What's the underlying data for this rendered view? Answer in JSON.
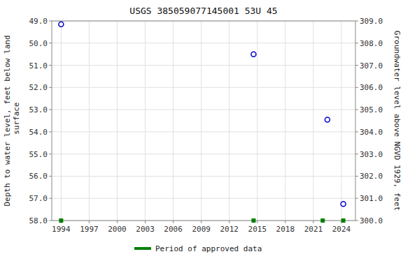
{
  "chart_data": {
    "type": "scatter",
    "title": "USGS 385059077145001 53U  45",
    "y_label": "Depth to water level, feet below land\n surface",
    "y2_label": "Groundwater level above NGVD 1929, feet",
    "xlim": [
      1993.0,
      2025.5
    ],
    "xticks": [
      1994,
      1997,
      2000,
      2003,
      2006,
      2009,
      2012,
      2015,
      2018,
      2021,
      2024
    ],
    "ylim": [
      58.0,
      49.0
    ],
    "yticks": [
      {
        "value": 49.0,
        "label": "49.0"
      },
      {
        "value": 50.0,
        "label": "50.0"
      },
      {
        "value": 51.0,
        "label": "51.0"
      },
      {
        "value": 52.0,
        "label": "52.0"
      },
      {
        "value": 53.0,
        "label": "53.0"
      },
      {
        "value": 54.0,
        "label": "54.0"
      },
      {
        "value": 55.0,
        "label": "55.0"
      },
      {
        "value": 56.0,
        "label": "56.0"
      },
      {
        "value": 57.0,
        "label": "57.0"
      },
      {
        "value": 58.0,
        "label": "58.0"
      }
    ],
    "y2lim": [
      300.0,
      309.0
    ],
    "y2ticks": [
      {
        "value": 309.0,
        "label": "309.0"
      },
      {
        "value": 308.0,
        "label": "308.0"
      },
      {
        "value": 307.0,
        "label": "307.0"
      },
      {
        "value": 306.0,
        "label": "306.0"
      },
      {
        "value": 305.0,
        "label": "305.0"
      },
      {
        "value": 304.0,
        "label": "304.0"
      },
      {
        "value": 303.0,
        "label": "303.0"
      },
      {
        "value": 302.0,
        "label": "302.0"
      },
      {
        "value": 301.0,
        "label": "301.0"
      },
      {
        "value": 300.0,
        "label": "300.0"
      }
    ],
    "grid": true,
    "legend": "bottom",
    "series": [
      {
        "color": "#0000cd",
        "marker": "circle",
        "x": [
          1994.0,
          2014.6,
          2022.5,
          2024.2
        ],
        "values": [
          49.15,
          50.5,
          53.45,
          57.25
        ]
      },
      {
        "name": "Period of approved data",
        "color": "#008000",
        "marker": "square",
        "x": [
          1994.0,
          2014.6,
          2022.0,
          2024.2
        ],
        "values": [
          58.0,
          58.0,
          58.0,
          58.0
        ]
      }
    ]
  }
}
